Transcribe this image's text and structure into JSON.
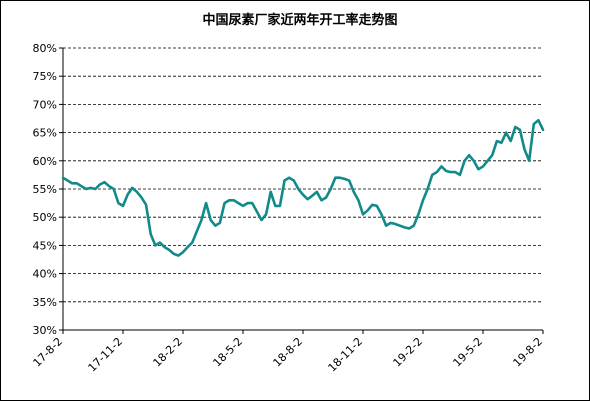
{
  "chart_data": {
    "type": "line",
    "title": "中国尿素厂家近两年开工率走势图",
    "categories": [
      "17-8-2",
      null,
      null,
      null,
      null,
      null,
      null,
      null,
      null,
      null,
      null,
      null,
      null,
      "17-11-2",
      null,
      null,
      null,
      null,
      null,
      null,
      null,
      null,
      null,
      null,
      null,
      null,
      "18-2-2",
      null,
      null,
      null,
      null,
      null,
      null,
      null,
      null,
      null,
      null,
      null,
      null,
      "18-5-2",
      null,
      null,
      null,
      null,
      null,
      null,
      null,
      null,
      null,
      null,
      null,
      null,
      "18-8-2",
      null,
      null,
      null,
      null,
      null,
      null,
      null,
      null,
      null,
      null,
      null,
      null,
      "18-11-2",
      null,
      null,
      null,
      null,
      null,
      null,
      null,
      null,
      null,
      null,
      null,
      null,
      "19-2-2",
      null,
      null,
      null,
      null,
      null,
      null,
      null,
      null,
      null,
      null,
      null,
      null,
      "19-5-2",
      null,
      null,
      null,
      null,
      null,
      null,
      null,
      null,
      null,
      null,
      null,
      null,
      "19-8-2"
    ],
    "values": [
      57,
      56.5,
      56,
      56,
      55.5,
      55,
      55.2,
      55,
      55.8,
      56.2,
      55.5,
      55,
      52.5,
      52,
      54,
      55.2,
      54.5,
      53.5,
      52.2,
      47,
      45,
      45.5,
      44.7,
      44.2,
      43.5,
      43.2,
      43.8,
      44.7,
      45.5,
      47.5,
      49.5,
      52.5,
      49.5,
      48.5,
      49,
      52.5,
      53,
      53,
      52.5,
      52,
      52.5,
      52.5,
      51,
      49.5,
      50.5,
      54.5,
      52,
      52,
      56.5,
      57,
      56.5,
      55,
      54,
      53.2,
      53.8,
      54.5,
      53,
      53.5,
      55,
      57,
      57,
      56.8,
      56.5,
      54.5,
      53,
      50.5,
      51.2,
      52.2,
      52,
      50.5,
      48.5,
      49,
      48.8,
      48.5,
      48.2,
      48,
      48.5,
      50.5,
      53,
      55,
      57.5,
      58,
      59,
      58.2,
      58,
      58,
      57.5,
      60,
      61,
      60,
      58.5,
      59,
      60,
      61,
      63.5,
      63.2,
      65,
      63.5,
      66,
      65.5,
      62,
      60,
      66.5,
      67.2,
      65.5
    ],
    "color": "#138a8a",
    "ylim": [
      30,
      80
    ],
    "yticks": [
      {
        "value": 30,
        "label": "30%"
      },
      {
        "value": 35,
        "label": "35%"
      },
      {
        "value": 40,
        "label": "40%"
      },
      {
        "value": 45,
        "label": "45%"
      },
      {
        "value": 50,
        "label": "50%"
      },
      {
        "value": 55,
        "label": "55%"
      },
      {
        "value": 60,
        "label": "60%"
      },
      {
        "value": 65,
        "label": "65%"
      },
      {
        "value": 70,
        "label": "70%"
      },
      {
        "value": 75,
        "label": "75%"
      },
      {
        "value": 80,
        "label": "80%"
      }
    ],
    "grid": true
  }
}
